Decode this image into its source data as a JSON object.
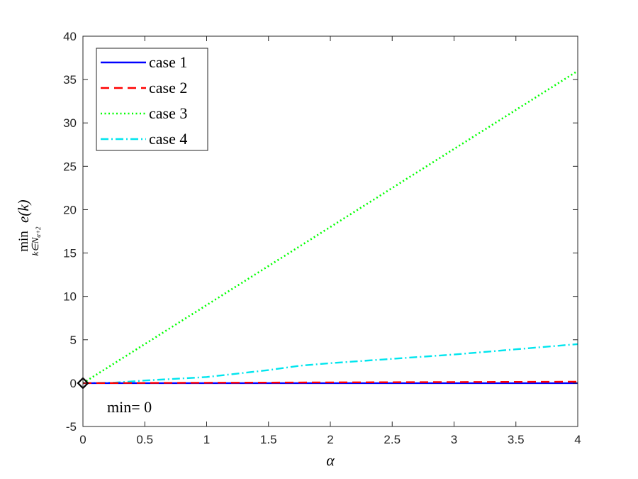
{
  "chart_data": {
    "type": "line",
    "xlabel": "α",
    "ylabel": {
      "operator": "min",
      "subscript_k": "k∈N",
      "subscript_sub": "α+2",
      "function": "e(k)"
    },
    "xlim": [
      0,
      4
    ],
    "ylim": [
      -5,
      40
    ],
    "x_ticks": [
      0,
      0.5,
      1,
      1.5,
      2,
      2.5,
      3,
      3.5,
      4
    ],
    "x_tick_labels": [
      "0",
      "0.5",
      "1",
      "1.5",
      "2",
      "2.5",
      "3",
      "3.5",
      "4"
    ],
    "y_ticks": [
      -5,
      0,
      5,
      10,
      15,
      20,
      25,
      30,
      35,
      40
    ],
    "y_tick_labels": [
      "-5",
      "0",
      "5",
      "10",
      "15",
      "20",
      "25",
      "30",
      "35",
      "40"
    ],
    "grid": false,
    "legend_position": "top-left",
    "series": [
      {
        "name": "case 1",
        "color": "#0000ff",
        "style": "solid",
        "x": [
          0,
          0.5,
          1,
          1.5,
          2,
          2.5,
          3,
          3.5,
          4
        ],
        "y": [
          0,
          0,
          0,
          0,
          0,
          0,
          0,
          0,
          0
        ]
      },
      {
        "name": "case 2",
        "color": "#ff0000",
        "style": "dashed",
        "x": [
          0,
          0.5,
          1,
          1.5,
          2,
          2.5,
          3,
          3.5,
          4
        ],
        "y": [
          0,
          0.02,
          0.04,
          0.06,
          0.08,
          0.1,
          0.12,
          0.14,
          0.16
        ]
      },
      {
        "name": "case 3",
        "color": "#00ff00",
        "style": "dotted",
        "x": [
          0,
          0.5,
          1,
          1.5,
          2,
          2.5,
          3,
          3.5,
          4
        ],
        "y": [
          0,
          4.5,
          9,
          13.5,
          18,
          22.5,
          27,
          31.5,
          36
        ]
      },
      {
        "name": "case 4",
        "color": "#00e5ee",
        "style": "dashdot",
        "x": [
          0,
          0.25,
          0.5,
          1,
          1.5,
          1.75,
          2,
          2.5,
          3,
          3.5,
          4
        ],
        "y": [
          0,
          0.05,
          0.3,
          0.7,
          1.5,
          2.0,
          2.3,
          2.8,
          3.3,
          3.9,
          4.5
        ]
      }
    ],
    "annotations": [
      {
        "text": "min= 0",
        "x": 0,
        "y": 0,
        "marker": "diamond"
      }
    ]
  }
}
